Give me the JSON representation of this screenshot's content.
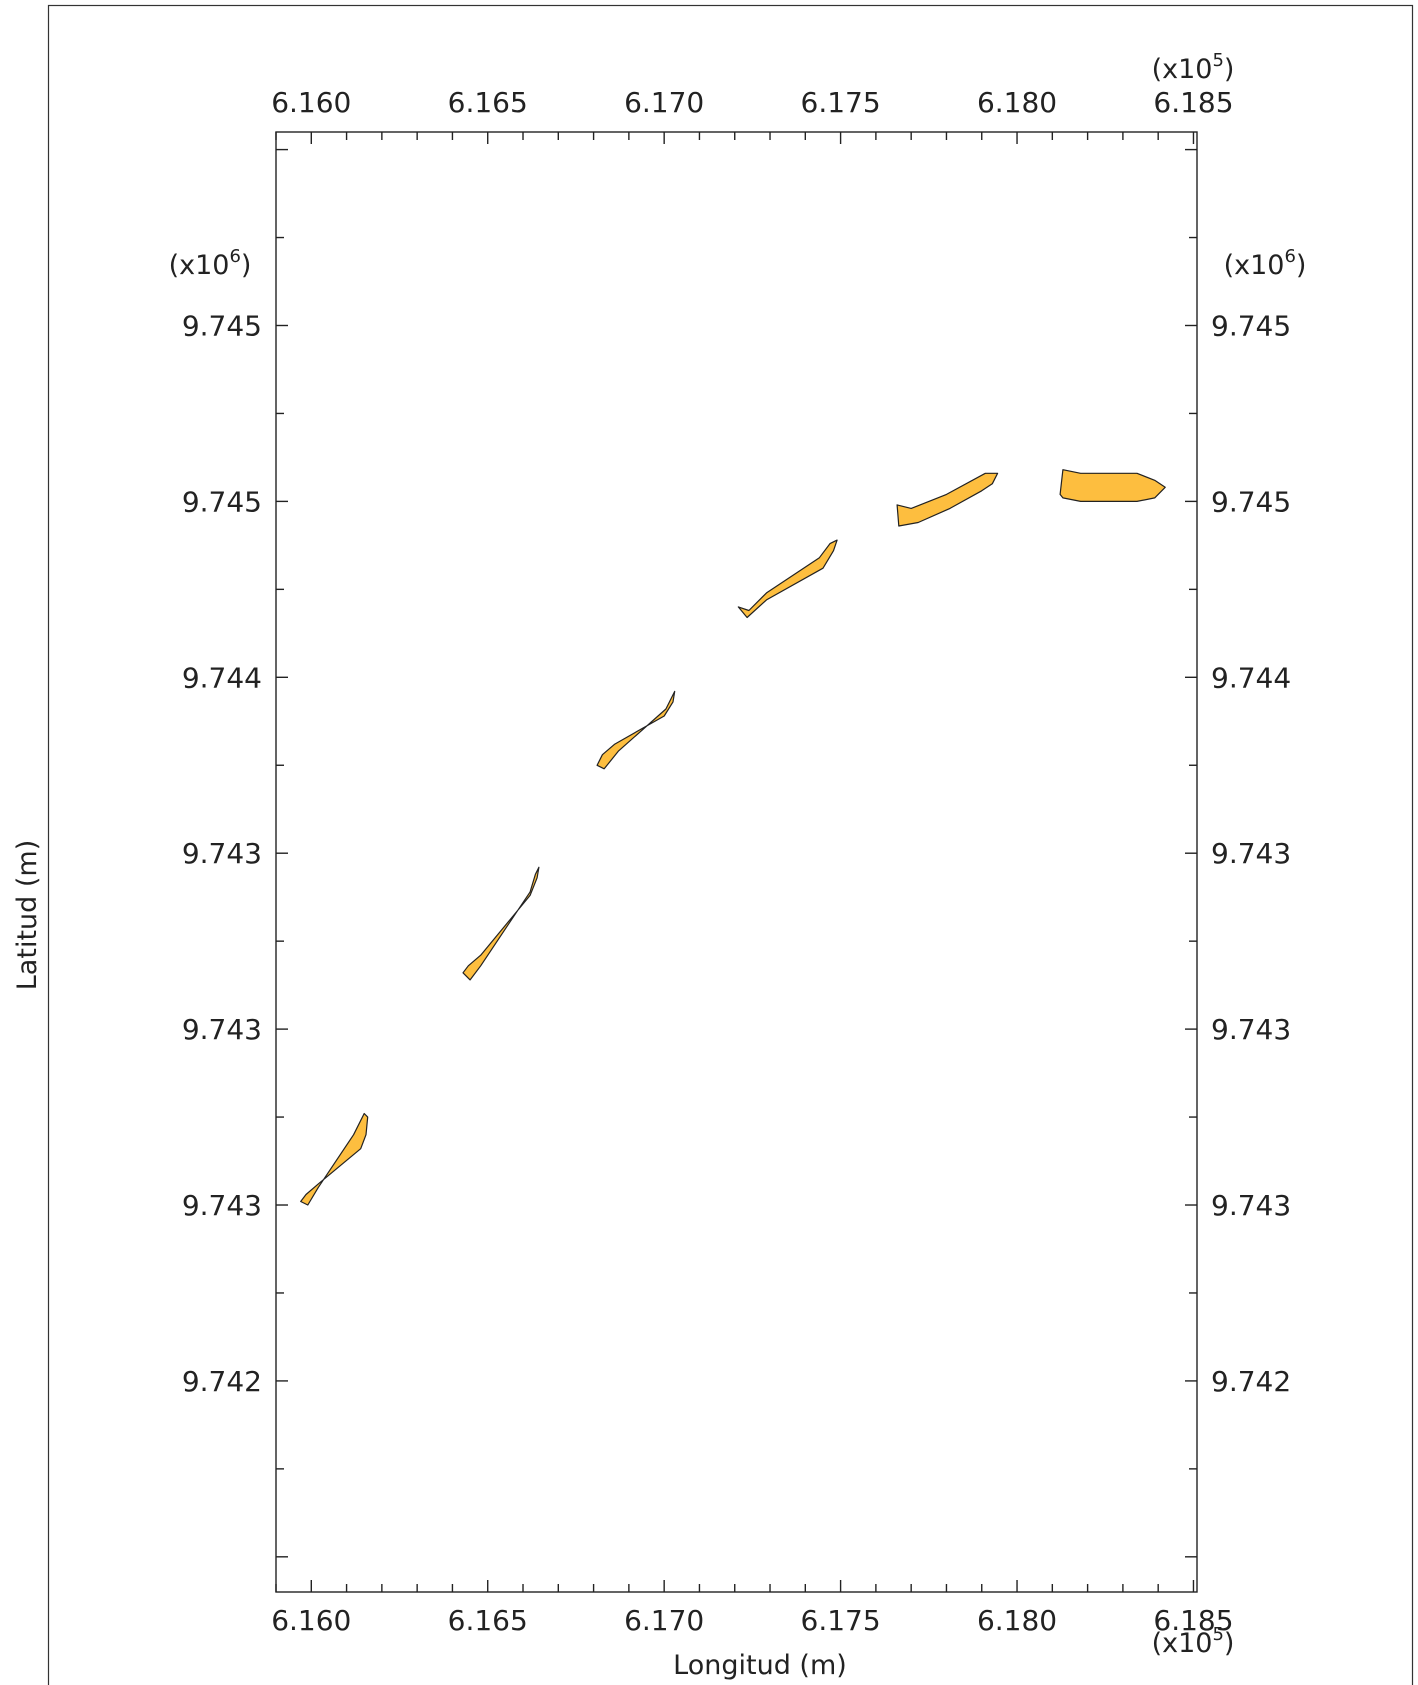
{
  "chart_data": {
    "type": "area",
    "title": "",
    "xlabel": "Longitud (m)",
    "ylabel": "Latitud (m)",
    "x_multiplier": {
      "base": "(x10",
      "exp": "5",
      "close": ")"
    },
    "y_multiplier": {
      "base": "(x10",
      "exp": "6",
      "close": ")"
    },
    "xlim": [
      6.159,
      6.1851
    ],
    "ylim": [
      9.7414,
      9.74555
    ],
    "x_ticks": [
      {
        "value": 6.16,
        "label": "6.160"
      },
      {
        "value": 6.165,
        "label": "6.165"
      },
      {
        "value": 6.17,
        "label": "6.170"
      },
      {
        "value": 6.175,
        "label": "6.175"
      },
      {
        "value": 6.18,
        "label": "6.180"
      },
      {
        "value": 6.185,
        "label": "6.185"
      }
    ],
    "y_ticks": [
      {
        "value": 9.745,
        "label": "9.745"
      },
      {
        "value": 9.7445,
        "label": "9.745"
      },
      {
        "value": 9.744,
        "label": "9.744"
      },
      {
        "value": 9.7435,
        "label": "9.743"
      },
      {
        "value": 9.743,
        "label": "9.743"
      },
      {
        "value": 9.7425,
        "label": "9.743"
      },
      {
        "value": 9.742,
        "label": "9.742"
      }
    ],
    "fill_color": "#FDBE3F",
    "stroke_color": "#222222",
    "grid": false,
    "segments": [
      {
        "points": [
          [
            6.1597,
            9.74251
          ],
          [
            6.1599,
            9.7425
          ],
          [
            6.1602,
            9.74255
          ],
          [
            6.1612,
            9.7427
          ],
          [
            6.1615,
            9.74276
          ],
          [
            6.1616,
            9.74275
          ],
          [
            6.16155,
            9.7427
          ],
          [
            6.1614,
            9.74266
          ],
          [
            6.1602,
            9.74256
          ],
          [
            6.15985,
            9.74253
          ]
        ]
      },
      {
        "points": [
          [
            6.1643,
            9.74316
          ],
          [
            6.1645,
            9.74314
          ],
          [
            6.1648,
            9.74318
          ],
          [
            6.1662,
            9.74339
          ],
          [
            6.16635,
            9.74344
          ],
          [
            6.16645,
            9.74346
          ],
          [
            6.1664,
            9.74343
          ],
          [
            6.1662,
            9.74338
          ],
          [
            6.1648,
            9.74321
          ],
          [
            6.16445,
            9.74318
          ]
        ]
      },
      {
        "points": [
          [
            6.1681,
            9.74375
          ],
          [
            6.1683,
            9.74374
          ],
          [
            6.1687,
            9.74379
          ],
          [
            6.17005,
            9.74391
          ],
          [
            6.1702,
            9.74394
          ],
          [
            6.1703,
            9.74396
          ],
          [
            6.17025,
            9.74393
          ],
          [
            6.17,
            9.74389
          ],
          [
            6.1686,
            9.74381
          ],
          [
            6.16825,
            9.74378
          ]
        ]
      },
      {
        "points": [
          [
            6.1721,
            9.7442
          ],
          [
            6.1724,
            9.74419
          ],
          [
            6.1729,
            9.74424
          ],
          [
            6.1744,
            9.74434
          ],
          [
            6.1747,
            9.74438
          ],
          [
            6.1749,
            9.74439
          ],
          [
            6.1748,
            9.74436
          ],
          [
            6.1745,
            9.74431
          ],
          [
            6.1729,
            9.74422
          ],
          [
            6.17235,
            9.74417
          ]
        ]
      },
      {
        "points": [
          [
            6.1766,
            9.74449
          ],
          [
            6.177,
            9.74448
          ],
          [
            6.178,
            9.74452
          ],
          [
            6.1791,
            9.74458
          ],
          [
            6.17945,
            9.74458
          ],
          [
            6.1793,
            9.74455
          ],
          [
            6.179,
            9.74453
          ],
          [
            6.1781,
            9.74448
          ],
          [
            6.1772,
            9.74444
          ],
          [
            6.17665,
            9.74443
          ]
        ]
      },
      {
        "points": [
          [
            6.1813,
            9.74459
          ],
          [
            6.1818,
            9.74458
          ],
          [
            6.1834,
            9.74458
          ],
          [
            6.1839,
            9.74456
          ],
          [
            6.1842,
            9.74454
          ],
          [
            6.1839,
            9.74451
          ],
          [
            6.1834,
            9.7445
          ],
          [
            6.1818,
            9.7445
          ],
          [
            6.1813,
            9.74451
          ],
          [
            6.18122,
            9.74452
          ]
        ]
      }
    ]
  }
}
